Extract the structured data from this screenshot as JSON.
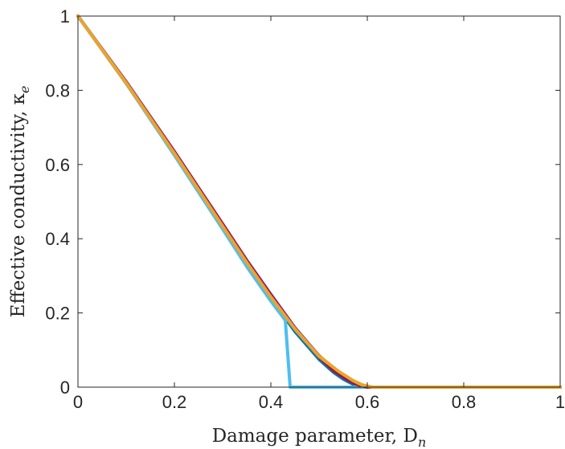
{
  "chart_data": {
    "type": "line",
    "xlabel": "Damage parameter, D",
    "xlabel_sub": "n",
    "ylabel": "Effective conductivity, κ",
    "ylabel_sub": "e",
    "xlim": [
      0,
      1
    ],
    "ylim": [
      0,
      1
    ],
    "xticks": [
      "0",
      "0.2",
      "0.4",
      "0.6",
      "0.8",
      "1"
    ],
    "yticks": [
      "0",
      "0.2",
      "0.4",
      "0.6",
      "0.8",
      "1"
    ],
    "grid": false,
    "box": true,
    "series": [
      {
        "color": "#0072bd",
        "x": [
          0,
          0.1,
          0.2,
          0.3,
          0.35,
          0.4,
          0.45,
          0.5,
          0.53,
          0.55,
          0.57,
          0.6,
          0.7,
          0.8,
          1.0
        ],
        "y": [
          1,
          0.82,
          0.627,
          0.43,
          0.33,
          0.24,
          0.15,
          0.075,
          0.04,
          0.022,
          0.008,
          0,
          0,
          0,
          0
        ]
      },
      {
        "color": "#d95319",
        "x": [
          0,
          0.1,
          0.2,
          0.3,
          0.35,
          0.4,
          0.45,
          0.5,
          0.53,
          0.56,
          0.58,
          0.6,
          0.7,
          0.8,
          1.0
        ],
        "y": [
          1,
          0.822,
          0.632,
          0.436,
          0.338,
          0.245,
          0.158,
          0.083,
          0.045,
          0.02,
          0.007,
          0,
          0,
          0,
          0
        ]
      },
      {
        "color": "#edb120",
        "x": [
          0,
          0.1,
          0.2,
          0.3,
          0.35,
          0.4,
          0.45,
          0.5,
          0.54,
          0.57,
          0.59,
          0.61,
          0.7,
          0.8,
          1.0
        ],
        "y": [
          1,
          0.818,
          0.628,
          0.432,
          0.336,
          0.244,
          0.158,
          0.085,
          0.042,
          0.018,
          0.006,
          0,
          0,
          0,
          0
        ]
      },
      {
        "color": "#7e2f8e",
        "x": [
          0,
          0.1,
          0.2,
          0.3,
          0.35,
          0.4,
          0.45,
          0.5,
          0.53,
          0.56,
          0.58,
          0.6,
          0.7,
          0.8,
          1.0
        ],
        "y": [
          1,
          0.823,
          0.635,
          0.44,
          0.342,
          0.25,
          0.16,
          0.084,
          0.046,
          0.019,
          0.006,
          0,
          0,
          0,
          0
        ]
      },
      {
        "color": "#77ac30",
        "x": [
          0,
          0.1,
          0.2,
          0.3,
          0.35,
          0.4,
          0.45,
          0.5,
          0.54,
          0.56,
          0.58,
          0.6,
          0.7,
          0.8,
          1.0
        ],
        "y": [
          1,
          0.82,
          0.63,
          0.434,
          0.336,
          0.243,
          0.156,
          0.082,
          0.042,
          0.024,
          0.008,
          0,
          0,
          0,
          0
        ]
      },
      {
        "color": "#4dbeee",
        "x": [
          0,
          0.1,
          0.2,
          0.3,
          0.35,
          0.4,
          0.43,
          0.44,
          0.47,
          0.5,
          0.52,
          0.55,
          0.57,
          0.6,
          0.8,
          1.0
        ],
        "y": [
          1,
          0.819,
          0.625,
          0.426,
          0.325,
          0.232,
          0.18,
          0,
          0,
          0,
          0,
          0,
          0,
          0,
          0,
          0
        ]
      },
      {
        "color": "#a2142f",
        "x": [
          0,
          0.1,
          0.2,
          0.3,
          0.35,
          0.4,
          0.45,
          0.5,
          0.53,
          0.56,
          0.58,
          0.6,
          0.7,
          0.8,
          1.0
        ],
        "y": [
          1,
          0.821,
          0.633,
          0.438,
          0.34,
          0.246,
          0.158,
          0.082,
          0.045,
          0.02,
          0.007,
          0,
          0,
          0,
          0
        ]
      },
      {
        "color": "#e8a530",
        "x": [
          0,
          0.1,
          0.2,
          0.3,
          0.35,
          0.4,
          0.45,
          0.5,
          0.54,
          0.57,
          0.59,
          0.61,
          0.7,
          0.8,
          1.0
        ],
        "y": [
          1,
          0.82,
          0.63,
          0.434,
          0.336,
          0.243,
          0.157,
          0.083,
          0.043,
          0.018,
          0.005,
          0,
          0,
          0,
          0
        ]
      }
    ]
  }
}
